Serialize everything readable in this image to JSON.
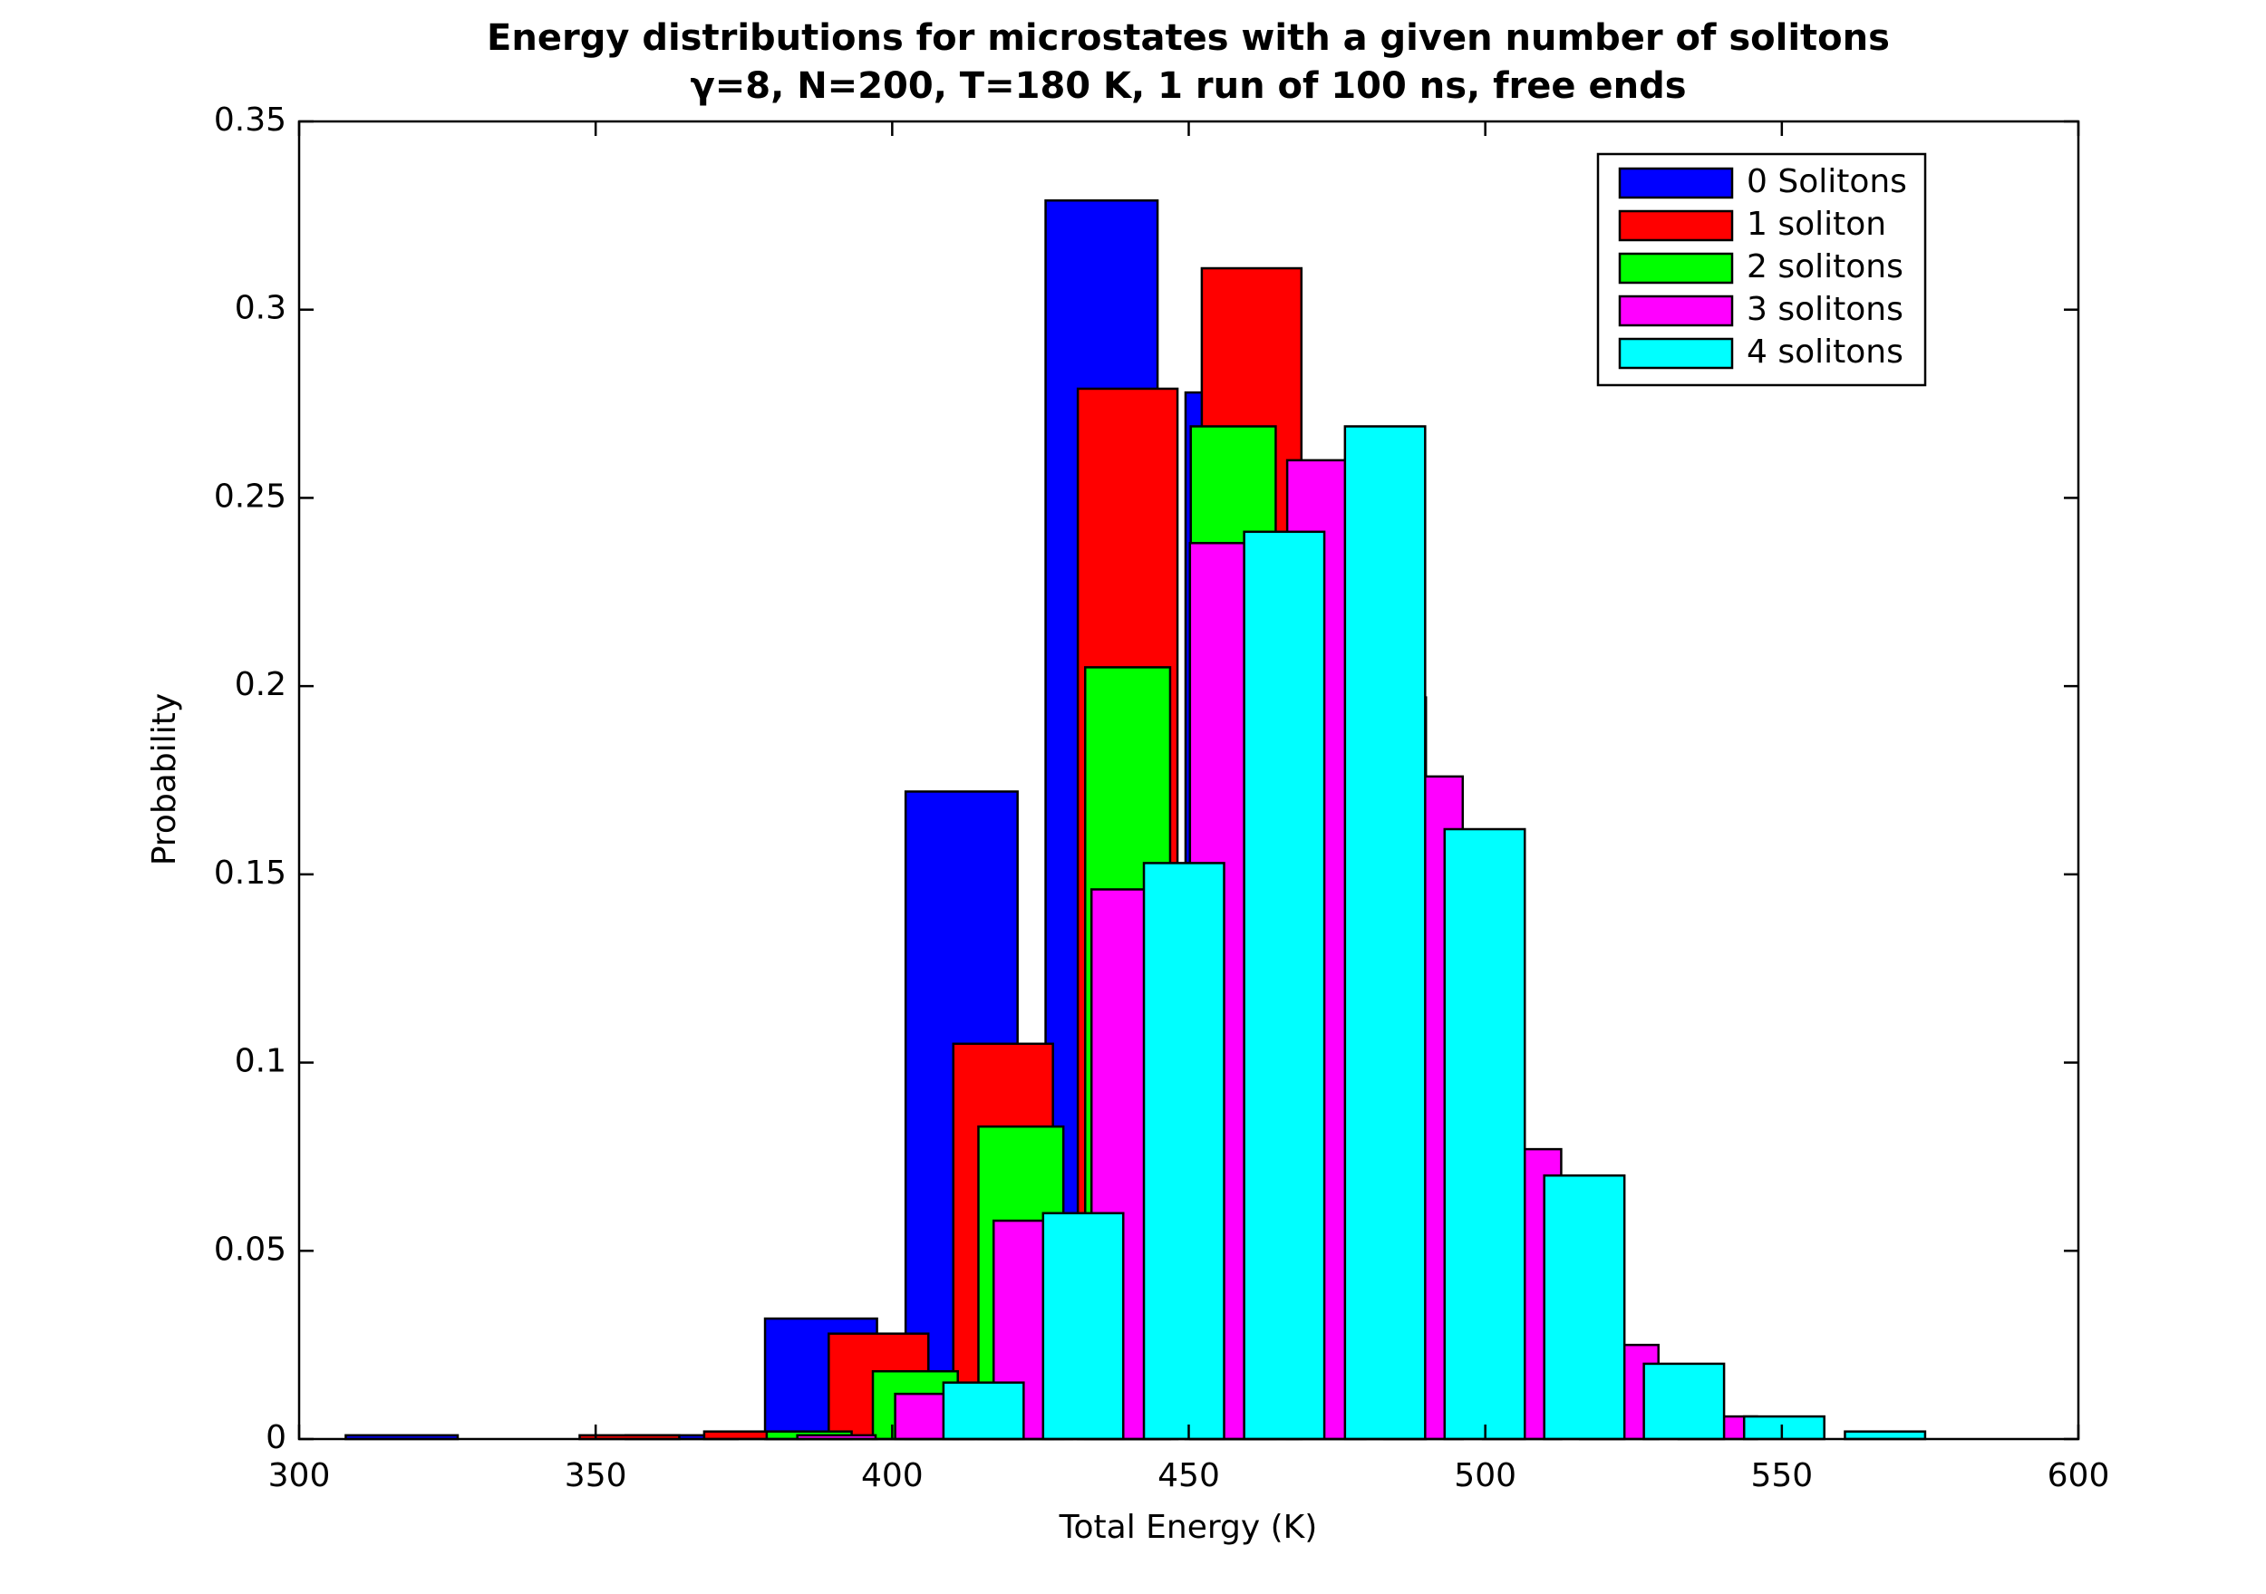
{
  "chart_data": {
    "type": "bar",
    "title": "Energy distributions for microstates with a given number of solitons",
    "subtitle": "γ=8, N=200, T=180 K, 1 run of 100 ns, free ends",
    "x_label": "Total Energy (K)",
    "y_label": "Probability",
    "xlim": [
      300,
      600
    ],
    "xticks": [
      300,
      350,
      400,
      450,
      500,
      550,
      600
    ],
    "ylim": [
      0,
      0.35
    ],
    "yticks": [
      0,
      0.05,
      0.1,
      0.15,
      0.2,
      0.25,
      0.3,
      0.35
    ],
    "legend": "upper right",
    "series": [
      {
        "name": "0 Solitons",
        "color": "#0000ff",
        "x": [
          317.3,
          364.5,
          388.0,
          411.7,
          435.3,
          458.9
        ],
        "values": [
          0.001,
          0.001,
          0.032,
          0.172,
          0.329,
          0.278
        ]
      },
      {
        "name": "1 soliton",
        "color": "#ff0000",
        "x": [
          355.7,
          376.7,
          397.7,
          418.7,
          439.7,
          460.6,
          481.6
        ],
        "values": [
          0.001,
          0.002,
          0.028,
          0.105,
          0.279,
          0.311,
          0.197
        ]
      },
      {
        "name": "2 solitons",
        "color": "#00ff00",
        "x": [
          386.0,
          403.9,
          421.7,
          439.7,
          457.5
        ],
        "values": [
          0.002,
          0.018,
          0.083,
          0.205,
          0.269
        ]
      },
      {
        "name": "3 solitons",
        "color": "#ff00ff",
        "x": [
          390.6,
          407.1,
          423.7,
          440.2,
          456.8,
          473.2,
          489.6,
          506.2,
          522.6,
          539.2
        ],
        "values": [
          0.001,
          0.012,
          0.058,
          0.146,
          0.238,
          0.26,
          0.176,
          0.077,
          0.025,
          0.006
        ]
      },
      {
        "name": "4 solitons",
        "color": "#00ffff",
        "x": [
          415.4,
          432.2,
          449.2,
          466.1,
          483.1,
          499.9,
          516.7,
          533.5,
          550.4,
          567.4
        ],
        "values": [
          0.015,
          0.06,
          0.153,
          0.241,
          0.269,
          0.162,
          0.07,
          0.02,
          0.006,
          0.002
        ]
      }
    ]
  }
}
